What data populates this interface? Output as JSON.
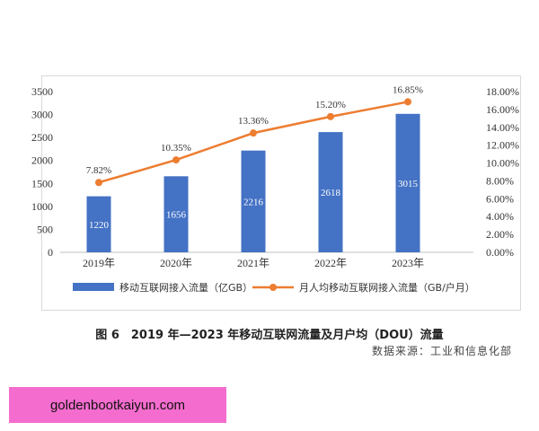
{
  "chart_data": {
    "type": "bar",
    "categories": [
      "2019年",
      "2020年",
      "2021年",
      "2022年",
      "2023年"
    ],
    "series": [
      {
        "name": "移动互联网接入流量（亿GB）",
        "type": "bar",
        "axis": "left",
        "values": [
          1220,
          1656,
          2216,
          2618,
          3015
        ],
        "data_labels": [
          "1220",
          "1656",
          "2216",
          "2618",
          "3015"
        ],
        "color": "#4472c4"
      },
      {
        "name": "月人均移动互联网接入流量（GB/户月）",
        "type": "line",
        "axis": "right",
        "values": [
          7.82,
          10.35,
          13.36,
          15.2,
          16.85
        ],
        "data_labels": [
          "7.82%",
          "10.35%",
          "13.36%",
          "15.20%",
          "16.85%"
        ],
        "color": "#ed7d31"
      }
    ],
    "y_left": {
      "range": [
        0,
        3500
      ],
      "ticks": [
        "0",
        "500",
        "1000",
        "1500",
        "2000",
        "2500",
        "3000",
        "3500"
      ]
    },
    "y_right": {
      "range": [
        0,
        18
      ],
      "ticks": [
        "0.00%",
        "2.00%",
        "4.00%",
        "6.00%",
        "8.00%",
        "10.00%",
        "12.00%",
        "14.00%",
        "16.00%",
        "18.00%"
      ]
    },
    "grid": false,
    "legend_position": "bottom"
  },
  "caption": "图 6　2019 年—2023 年移动互联网流量及月户均（DOU）流量",
  "source": "数据来源：工业和信息化部",
  "watermark": "goldenbootkaiyun.com"
}
